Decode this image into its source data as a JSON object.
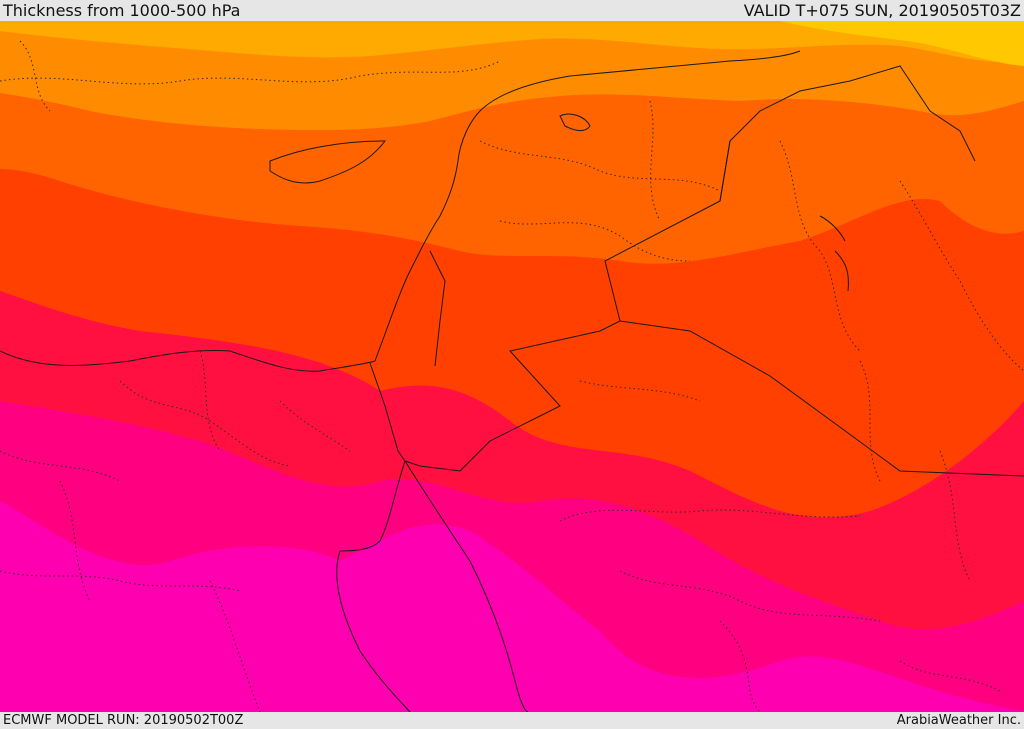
{
  "header": {
    "title": "Thickness from 1000-500 hPa",
    "valid_time": "VALID T+075 SUN, 20190505T03Z"
  },
  "footer": {
    "model_run": "ECMWF MODEL RUN: 20190502T00Z",
    "credit": "ArabiaWeather Inc."
  },
  "map": {
    "field": "1000-500 hPa thickness",
    "shading_colors": [
      "#ffc800",
      "#ffaa00",
      "#ff8c00",
      "#ff6400",
      "#ff4000",
      "#ff1040",
      "#ff0080",
      "#ff00b0"
    ],
    "overlay": "country and province borders"
  }
}
